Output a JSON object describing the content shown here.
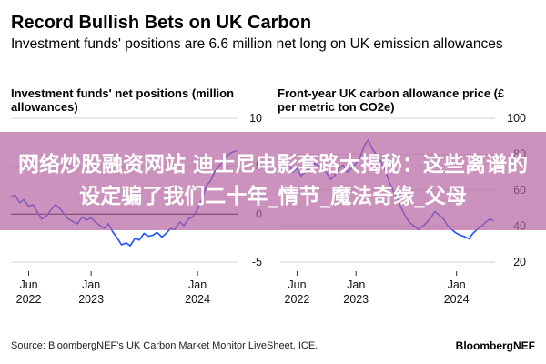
{
  "header": {
    "title": "Record Bullish Bets on UK Carbon",
    "subtitle": "Investment funds' positions are 6.6 million net long on UK emission allowances"
  },
  "footer": {
    "source": "Source: BloombergNEF’s UK Carbon Market Monitor LiveSheet, ICE.",
    "brand": "BloombergNEF"
  },
  "banner": {
    "text": "网络炒股融资网站 迪士尼电影套路大揭秘：这些离谱的设定骗了我们二十年_情节_魔法奇缘_父母"
  },
  "colors": {
    "line": "#1b4dff",
    "zero_line": "#000000",
    "grid": "#d6d6d6",
    "banner": "#b464a0"
  },
  "chart_data": [
    {
      "type": "line",
      "title": "Investment funds' net positions (million allowances)",
      "y_ticks": [
        10,
        5,
        0,
        -5
      ],
      "ylim": [
        -5,
        10
      ],
      "x_ticks": [
        {
          "label": "Jun",
          "sub": "2022",
          "date": "2022-06-01"
        },
        {
          "label": "Jan",
          "sub": "2023",
          "date": "2023-01-01"
        },
        {
          "label": "Jan",
          "sub": "2024",
          "date": "2024-01-01"
        }
      ],
      "xlim": [
        "2022-04-01",
        "2024-05-20"
      ],
      "reference_line": 0,
      "series": [
        {
          "x": [
            "2022-04-01",
            "2022-04-15",
            "2022-05-01",
            "2022-05-15",
            "2022-06-01",
            "2022-06-15",
            "2022-07-01",
            "2022-07-15",
            "2022-08-01",
            "2022-08-15",
            "2022-09-01",
            "2022-09-15",
            "2022-10-01",
            "2022-10-15",
            "2022-11-01",
            "2022-11-15",
            "2022-12-01",
            "2022-12-15",
            "2023-01-01",
            "2023-01-15",
            "2023-02-01",
            "2023-02-15",
            "2023-03-01",
            "2023-03-15",
            "2023-04-01",
            "2023-04-15",
            "2023-05-01",
            "2023-05-15",
            "2023-06-01",
            "2023-06-15",
            "2023-07-01",
            "2023-07-15",
            "2023-08-01",
            "2023-08-15",
            "2023-09-01",
            "2023-09-15",
            "2023-10-01",
            "2023-10-15",
            "2023-11-01",
            "2023-11-15",
            "2023-12-01",
            "2023-12-15",
            "2024-01-01",
            "2024-01-15",
            "2024-02-01",
            "2024-02-15",
            "2024-03-01",
            "2024-03-15",
            "2024-04-01",
            "2024-04-15",
            "2024-05-01",
            "2024-05-15"
          ],
          "y": [
            1.8,
            2.0,
            1.2,
            1.5,
            0.8,
            1.0,
            0.2,
            -0.5,
            -0.2,
            0.4,
            1.0,
            0.6,
            0.0,
            -0.5,
            -0.8,
            -1.0,
            -0.3,
            -0.6,
            -0.4,
            -0.8,
            -1.2,
            -1.5,
            -1.0,
            -1.8,
            -2.5,
            -3.2,
            -3.0,
            -3.3,
            -2.5,
            -2.7,
            -2.0,
            -2.3,
            -2.2,
            -1.9,
            -2.4,
            -2.0,
            -1.5,
            -1.6,
            -0.8,
            -1.2,
            -0.5,
            -0.3,
            0.5,
            1.5,
            3.0,
            3.5,
            4.5,
            5.0,
            5.8,
            6.2,
            6.5,
            6.6
          ]
        }
      ]
    },
    {
      "type": "line",
      "title": "Front-year UK carbon allowance price (£ per metric ton CO2e)",
      "y_ticks": [
        100,
        80,
        60,
        40,
        20
      ],
      "ylim": [
        20,
        100
      ],
      "x_ticks": [
        {
          "label": "Jun",
          "sub": "2022",
          "date": "2022-06-01"
        },
        {
          "label": "Jan",
          "sub": "2023",
          "date": "2023-01-01"
        },
        {
          "label": "Jan",
          "sub": "2024",
          "date": "2024-01-01"
        }
      ],
      "xlim": [
        "2022-04-01",
        "2024-05-20"
      ],
      "series": [
        {
          "x": [
            "2022-04-01",
            "2022-04-15",
            "2022-05-01",
            "2022-05-15",
            "2022-06-01",
            "2022-06-15",
            "2022-07-01",
            "2022-07-15",
            "2022-08-01",
            "2022-08-15",
            "2022-09-01",
            "2022-09-15",
            "2022-10-01",
            "2022-10-15",
            "2022-11-01",
            "2022-11-15",
            "2022-12-01",
            "2022-12-15",
            "2023-01-01",
            "2023-01-15",
            "2023-02-01",
            "2023-02-15",
            "2023-03-01",
            "2023-03-15",
            "2023-04-01",
            "2023-04-15",
            "2023-05-01",
            "2023-05-15",
            "2023-06-01",
            "2023-06-15",
            "2023-07-01",
            "2023-07-15",
            "2023-08-01",
            "2023-08-15",
            "2023-09-01",
            "2023-09-15",
            "2023-10-01",
            "2023-10-15",
            "2023-11-01",
            "2023-11-15",
            "2023-12-01",
            "2023-12-15",
            "2024-01-01",
            "2024-01-15",
            "2024-02-01",
            "2024-02-15",
            "2024-03-01",
            "2024-03-15",
            "2024-04-01",
            "2024-04-15",
            "2024-05-01",
            "2024-05-15"
          ],
          "y": [
            78,
            74,
            76,
            70,
            72,
            68,
            70,
            72,
            75,
            74,
            72,
            70,
            66,
            68,
            72,
            74,
            70,
            72,
            75,
            78,
            85,
            88,
            83,
            80,
            76,
            72,
            65,
            60,
            55,
            50,
            45,
            42,
            40,
            38,
            40,
            42,
            45,
            48,
            46,
            44,
            40,
            38,
            36,
            35,
            34,
            33,
            36,
            38,
            40,
            42,
            44,
            43
          ]
        }
      ]
    }
  ]
}
